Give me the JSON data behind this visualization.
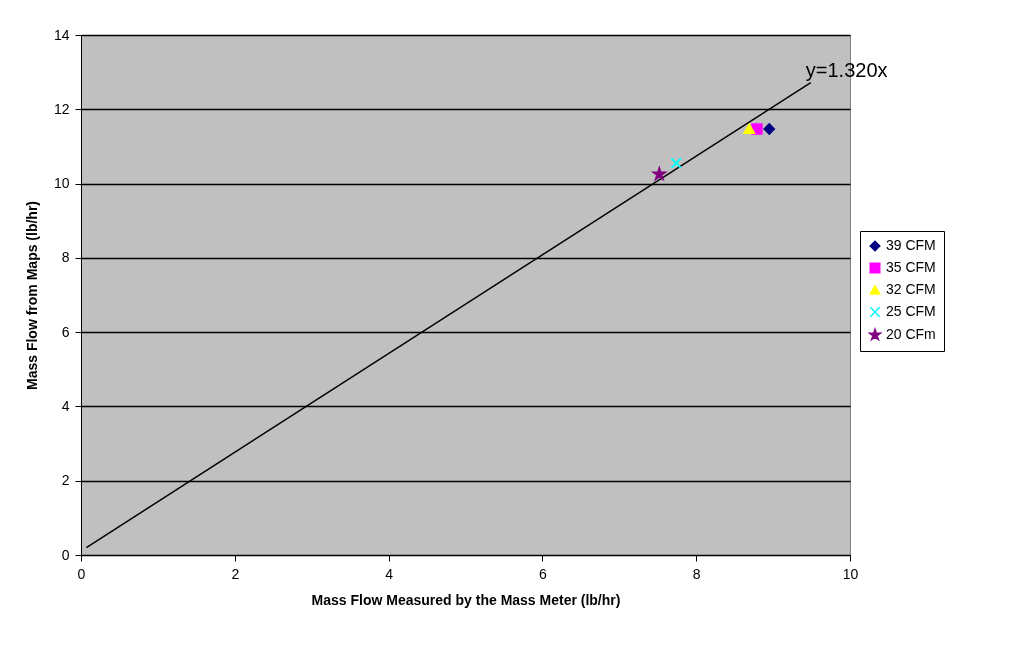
{
  "chart_data": {
    "type": "scatter",
    "xlabel": "Mass Flow Measured by the Mass Meter (lb/hr)",
    "ylabel": "Mass Flow from Maps (lb/hr)",
    "xlim": [
      0,
      10
    ],
    "xticks": [
      0,
      2,
      4,
      6,
      8,
      10
    ],
    "ylim": [
      0,
      14
    ],
    "yticks": [
      0,
      2,
      4,
      6,
      8,
      10,
      12,
      14
    ],
    "grid": "y",
    "legend": "right",
    "annotations": [
      {
        "text": "y=1.320x",
        "x": 9.49,
        "y": 12.72
      }
    ],
    "series": [
      {
        "name": "39 CFM",
        "color": "#000080",
        "marker": "diamond",
        "x": [
          8.95
        ],
        "values": [
          11.47
        ]
      },
      {
        "name": "35 CFM",
        "color": "#ff00ff",
        "marker": "square",
        "x": [
          8.79
        ],
        "values": [
          11.47
        ]
      },
      {
        "name": "32 CFM",
        "color": "#ffff00",
        "marker": "triangle",
        "x": [
          8.69
        ],
        "values": [
          11.47
        ]
      },
      {
        "name": "25 CFM",
        "color": "#00ffff",
        "marker": "cross",
        "x": [
          7.74
        ],
        "values": [
          10.55
        ]
      },
      {
        "name": "20 CFm",
        "color": "#800080",
        "marker": "star",
        "x": [
          7.52
        ],
        "values": [
          10.25
        ]
      },
      {
        "type": "line",
        "color": "#000000",
        "x": [
          0.07,
          9.49
        ],
        "values": [
          0.2,
          12.72
        ]
      }
    ]
  }
}
